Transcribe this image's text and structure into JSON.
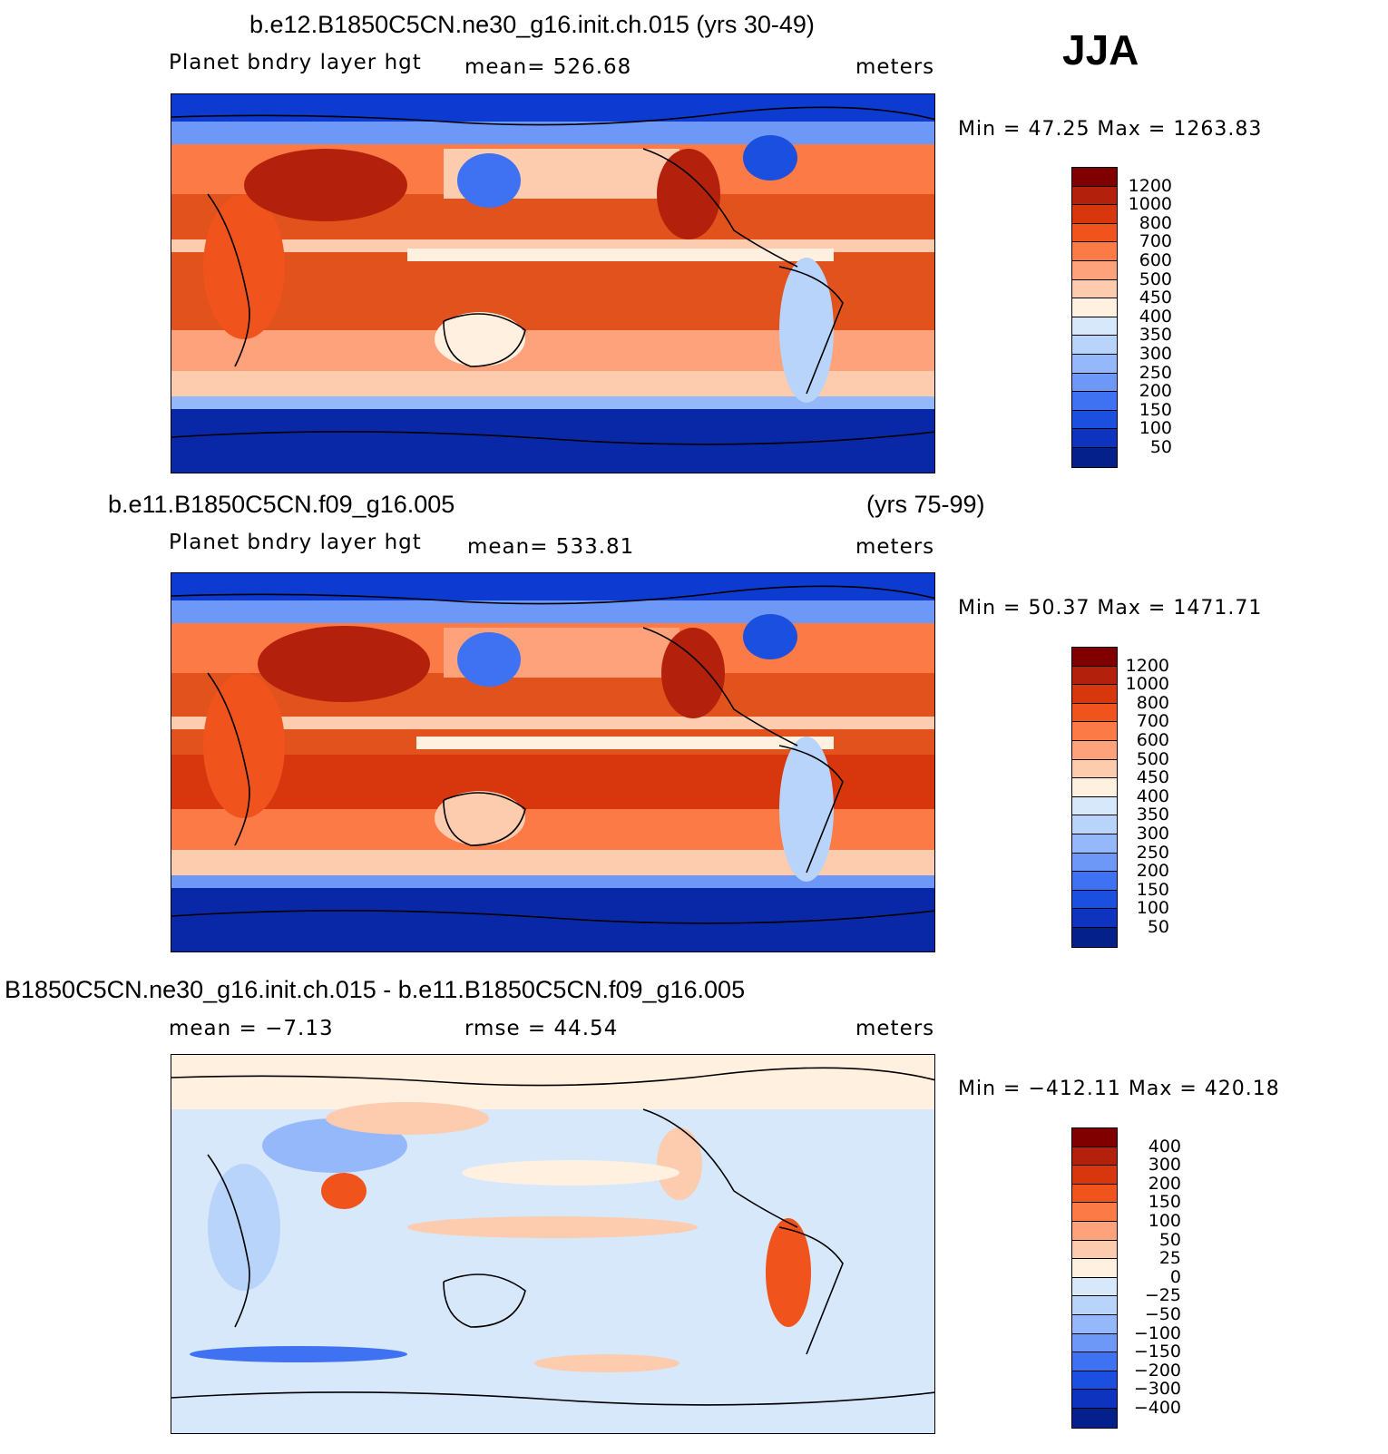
{
  "season": "JJA",
  "panels": [
    {
      "title": "b.e12.B1850C5CN.ne30_g16.init.ch.015 (yrs 30-49)",
      "title_right": "",
      "left_sub": "Planet bndry layer hgt",
      "center_sub": "mean= 526.68",
      "units": "meters",
      "minmax": "Min =   47.25  Max  =  1263.83",
      "colorbar_levels": [
        "1200",
        "1000",
        "800",
        "700",
        "600",
        "500",
        "450",
        "400",
        "350",
        "300",
        "250",
        "200",
        "150",
        "100",
        "50"
      ],
      "colorbar_colors": [
        "#800000",
        "#b3200c",
        "#d8360c",
        "#f0531c",
        "#fb7a45",
        "#fda27a",
        "#fdcbae",
        "#fff0e0",
        "#d8e8fb",
        "#b8d4fb",
        "#94b8fa",
        "#6d98f8",
        "#3f72f2",
        "#1a4fe0",
        "#0e34bf",
        "#04208a"
      ]
    },
    {
      "title": "b.e11.B1850C5CN.f09_g16.005",
      "title_right": "(yrs 75-99)",
      "left_sub": "Planet bndry layer hgt",
      "center_sub": "mean= 533.81",
      "units": "meters",
      "minmax": "Min =   50.37  Max  =  1471.71",
      "colorbar_levels": [
        "1200",
        "1000",
        "800",
        "700",
        "600",
        "500",
        "450",
        "400",
        "350",
        "300",
        "250",
        "200",
        "150",
        "100",
        "50"
      ],
      "colorbar_colors": [
        "#800000",
        "#b3200c",
        "#d8360c",
        "#f0531c",
        "#fb7a45",
        "#fda27a",
        "#fdcbae",
        "#fff0e0",
        "#d8e8fb",
        "#b8d4fb",
        "#94b8fa",
        "#6d98f8",
        "#3f72f2",
        "#1a4fe0",
        "#0e34bf",
        "#04208a"
      ]
    },
    {
      "title": "B1850C5CN.ne30_g16.init.ch.015 - b.e11.B1850C5CN.f09_g16.005",
      "title_right": "",
      "left_sub": "mean =   −7.13",
      "center_sub": "rmse =   44.54",
      "units": "meters",
      "minmax": "Min = −412.11  Max  =  420.18",
      "colorbar_levels": [
        "400",
        "300",
        "200",
        "150",
        "100",
        "50",
        "25",
        "0",
        "−25",
        "−50",
        "−100",
        "−150",
        "−200",
        "−300",
        "−400"
      ],
      "colorbar_colors": [
        "#800000",
        "#b3200c",
        "#d8360c",
        "#f0531c",
        "#fb7a45",
        "#fda27a",
        "#fdcbae",
        "#fff0e0",
        "#d8e8fb",
        "#b8d4fb",
        "#94b8fa",
        "#6d98f8",
        "#3f72f2",
        "#1a4fe0",
        "#0e34bf",
        "#04208a"
      ]
    }
  ],
  "map_colors": {
    "polar": "#0d3ad0",
    "polar_deep": "#0828a8",
    "subpolar": "#2f62ea",
    "midlat": "#fdcbae",
    "subtropic": "#fb7a45",
    "tropic_strong": "#e0481a",
    "equator": "#fff0e0",
    "land_hot": "#b3200c",
    "diff_bg": "#d8e8fb",
    "diff_pos": "#fdcbae",
    "diff_neg": "#94b8fa"
  }
}
